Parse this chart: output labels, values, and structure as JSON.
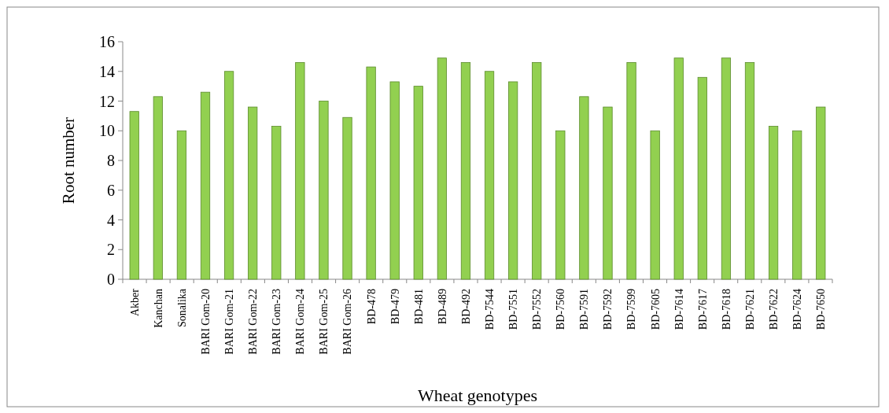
{
  "chart_data": {
    "type": "bar",
    "xlabel": "Wheat genotypes",
    "ylabel": "Root number",
    "categories": [
      "Akber",
      "Kanchan",
      "Sonalika",
      "BARI Gom-20",
      "BARI Gom-21",
      "BARI Gom-22",
      "BARI Gom-23",
      "BARI Gom-24",
      "BARI Gom-25",
      "BARI Gom-26",
      "BD-478",
      "BD-479",
      "BD-481",
      "BD-489",
      "BD-492",
      "BD-7544",
      "BD-7551",
      "BD-7552",
      "BD-7560",
      "BD-7591",
      "BD-7592",
      "BD-7599",
      "BD-7605",
      "BD-7614",
      "BD-7617",
      "BD-7618",
      "BD-7621",
      "BD-7622",
      "BD-7624",
      "BD-7650"
    ],
    "values": [
      11.3,
      12.3,
      10.0,
      12.6,
      14.0,
      11.6,
      10.3,
      14.6,
      12.0,
      10.9,
      14.3,
      13.3,
      13.0,
      14.9,
      14.6,
      14.0,
      13.3,
      14.6,
      10.0,
      12.3,
      11.6,
      14.6,
      10.0,
      14.9,
      13.6,
      14.9,
      14.6,
      10.3,
      10.0,
      11.6
    ],
    "color": "#92d050",
    "ylim": [
      0,
      16
    ],
    "yticks": [
      0,
      2,
      4,
      6,
      8,
      10,
      12,
      14,
      16
    ],
    "grid": false
  }
}
